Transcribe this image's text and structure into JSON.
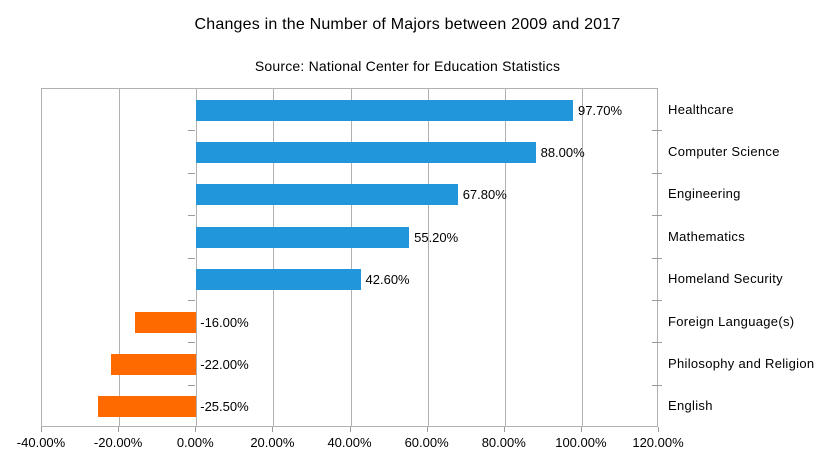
{
  "header": {
    "title": "Changes in the Number of Majors between 2009 and 2017",
    "subtitle": "Source: National Center for Education Statistics"
  },
  "chart_data": {
    "type": "bar",
    "orientation": "horizontal",
    "title": "Changes in the Number of Majors between 2009 and 2017",
    "subtitle": "Source: National Center for Education Statistics",
    "categories": [
      "Healthcare",
      "Computer Science",
      "Engineering",
      "Mathematics",
      "Homeland Security",
      "Foreign Language(s)",
      "Philosophy and Religion",
      "English"
    ],
    "values": [
      97.7,
      88.0,
      67.8,
      55.2,
      42.6,
      -16.0,
      -22.0,
      -25.5
    ],
    "value_labels": [
      "97.70%",
      "88.00%",
      "67.80%",
      "55.20%",
      "42.60%",
      "-16.00%",
      "-22.00%",
      "-25.50%"
    ],
    "xlim": [
      -40,
      120
    ],
    "x_tick_step": 20,
    "x_tick_labels": [
      "-40.00%",
      "-20.00%",
      "0.00%",
      "20.00%",
      "40.00%",
      "60.00%",
      "80.00%",
      "100.00%",
      "120.00%"
    ],
    "grid": "vertical-only",
    "legend": "none",
    "category_labels_position": "right",
    "colors": {
      "positive_bar": "#2196db",
      "negative_bar": "#ff6a00",
      "gridline": "#b1b1b1",
      "plot_border": "#b1b1b1",
      "tick": "#9b9b9b",
      "text": "#000000",
      "background": "#ffffff"
    }
  }
}
